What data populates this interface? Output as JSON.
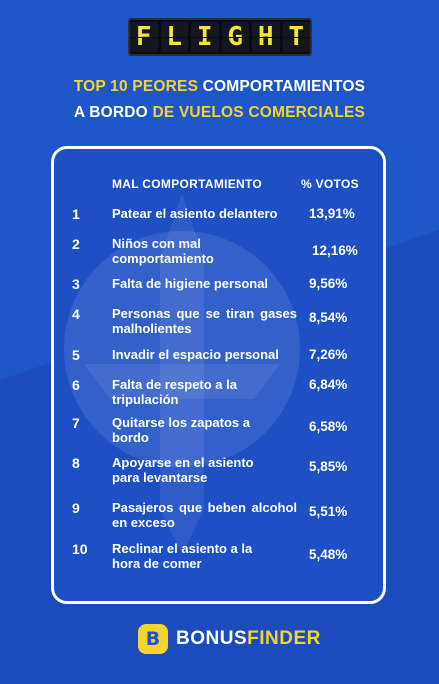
{
  "logo": {
    "text": "FLIGHT",
    "letters": [
      "F",
      "L",
      "I",
      "G",
      "H",
      "T"
    ]
  },
  "title": {
    "line1_highlight": "TOP 10 PEORES",
    "line1_rest": " COMPORTAMIENTOS",
    "line2_plain": "A BORDO",
    "line2_highlight": " DE VUELOS COMERCIALES"
  },
  "table": {
    "header_behavior": "MAL COMPORTAMIENTO",
    "header_votes": "% VOTOS",
    "rows": [
      {
        "rank": "1",
        "label": "Patear el asiento delantero",
        "pct": "13,91%"
      },
      {
        "rank": "2",
        "label": "Niños con mal comportamiento",
        "pct": "12,16%"
      },
      {
        "rank": "3",
        "label": "Falta de higiene personal",
        "pct": "9,56%"
      },
      {
        "rank": "4",
        "label": "Personas que se tiran gases malholientes",
        "pct": "8,54%"
      },
      {
        "rank": "5",
        "label": "Invadir el espacio personal",
        "pct": "7,26%"
      },
      {
        "rank": "6",
        "label": "Falta de respeto a la tripulación",
        "pct": "6,84%"
      },
      {
        "rank": "7",
        "label": "Quitarse los zapatos a bordo",
        "pct": "6,58%"
      },
      {
        "rank": "8",
        "label": "Apoyarse en el asiento para levantarse",
        "pct": "5,85%"
      },
      {
        "rank": "9",
        "label": "Pasajeros que beben alcohol en exceso",
        "pct": "5,51%"
      },
      {
        "rank": "10",
        "label": "Reclinar el asiento a la hora de comer",
        "pct": "5,48%"
      }
    ]
  },
  "footer": {
    "badge": "B",
    "brand_part1": "BONUS",
    "brand_part2": "FINDER"
  },
  "colors": {
    "background": "#1e56c8",
    "accent_yellow": "#f4d52c",
    "text": "#ffffff"
  }
}
